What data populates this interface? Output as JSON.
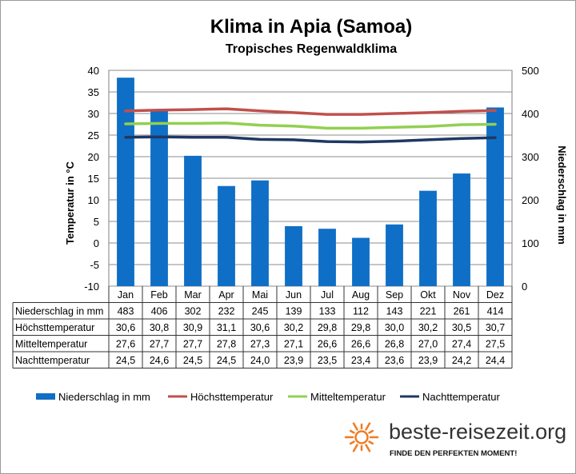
{
  "title": "Klima in Apia (Samoa)",
  "subtitle": "Tropisches Regenwaldklima",
  "brand": {
    "name": "beste-reisezeit.org",
    "slogan": "FINDE DEN PERFEKTEN MOMENT!",
    "sun_color": "#f07c22",
    "sun_icon": "sun-icon"
  },
  "chart_data": {
    "type": "bar",
    "title": "Klima in Apia (Samoa)",
    "subtitle": "Tropisches Regenwaldklima",
    "categories": [
      "Jan",
      "Feb",
      "Mar",
      "Apr",
      "Mai",
      "Jun",
      "Jul",
      "Aug",
      "Sep",
      "Okt",
      "Nov",
      "Dez"
    ],
    "y_left": {
      "label": "Temperatur in °C",
      "min": -10,
      "max": 40,
      "ticks": [
        40,
        35,
        30,
        25,
        20,
        15,
        10,
        5,
        0,
        -5,
        -10
      ]
    },
    "y_right": {
      "label": "Niederschlag in mm",
      "min": 0,
      "max": 500,
      "ticks": [
        500,
        400,
        300,
        200,
        100,
        0
      ]
    },
    "grid": "horizontal",
    "legend_position": "bottom",
    "series": [
      {
        "name": "Niederschlag in mm",
        "type": "bar",
        "axis": "right",
        "color": "#0f6fc6",
        "values": [
          483,
          406,
          302,
          232,
          245,
          139,
          133,
          112,
          143,
          221,
          261,
          414
        ],
        "labels": [
          "483",
          "406",
          "302",
          "232",
          "245",
          "139",
          "133",
          "112",
          "143",
          "221",
          "261",
          "414"
        ]
      },
      {
        "name": "Höchsttemperatur",
        "type": "line",
        "axis": "left",
        "color": "#c0504d",
        "values": [
          30.6,
          30.8,
          30.9,
          31.1,
          30.6,
          30.2,
          29.8,
          29.8,
          30.0,
          30.2,
          30.5,
          30.7
        ],
        "labels": [
          "30,6",
          "30,8",
          "30,9",
          "31,1",
          "30,6",
          "30,2",
          "29,8",
          "29,8",
          "30,0",
          "30,2",
          "30,5",
          "30,7"
        ]
      },
      {
        "name": "Mitteltemperatur",
        "type": "line",
        "axis": "left",
        "color": "#92d050",
        "values": [
          27.6,
          27.7,
          27.7,
          27.8,
          27.3,
          27.1,
          26.6,
          26.6,
          26.8,
          27.0,
          27.4,
          27.5
        ],
        "labels": [
          "27,6",
          "27,7",
          "27,7",
          "27,8",
          "27,3",
          "27,1",
          "26,6",
          "26,6",
          "26,8",
          "27,0",
          "27,4",
          "27,5"
        ]
      },
      {
        "name": "Nachttemperatur",
        "type": "line",
        "axis": "left",
        "color": "#1f3864",
        "values": [
          24.5,
          24.6,
          24.5,
          24.5,
          24.0,
          23.9,
          23.5,
          23.4,
          23.6,
          23.9,
          24.2,
          24.4
        ],
        "labels": [
          "24,5",
          "24,6",
          "24,5",
          "24,5",
          "24,0",
          "23,9",
          "23,5",
          "23,4",
          "23,6",
          "23,9",
          "24,2",
          "24,4"
        ]
      }
    ]
  }
}
